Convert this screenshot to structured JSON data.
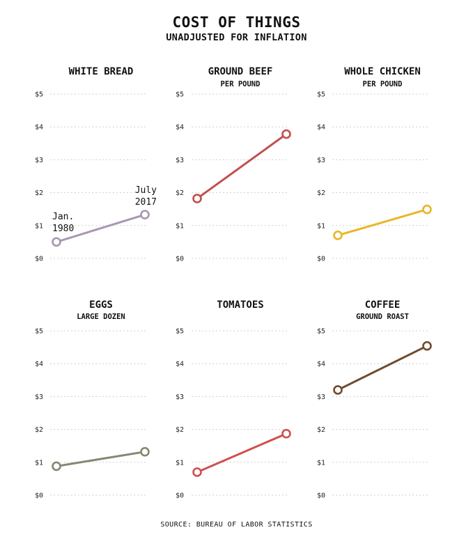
{
  "header": {
    "title": "COST OF THINGS",
    "subtitle": "UNADJUSTED FOR INFLATION",
    "source": "SOURCE: BUREAU OF LABOR STATISTICS"
  },
  "chart_data": [
    {
      "type": "line",
      "title": "WHITE BREAD",
      "subtitle": "",
      "x": [
        "Jan. 1980",
        "July 2017"
      ],
      "values": [
        0.5,
        1.33
      ],
      "color": "#a797b2",
      "ylim": [
        0,
        5
      ],
      "yticks": [
        "$0",
        "$1",
        "$2",
        "$3",
        "$4",
        "$5"
      ],
      "grid": true,
      "annotations": [
        [
          "Jan.",
          "1980"
        ],
        [
          "July",
          "2017"
        ]
      ]
    },
    {
      "type": "line",
      "title": "GROUND BEEF",
      "subtitle": "PER POUND",
      "x": [
        "Jan. 1980",
        "July 2017"
      ],
      "values": [
        1.82,
        3.78
      ],
      "color": "#c0504d",
      "ylim": [
        0,
        5
      ],
      "yticks": [
        "$0",
        "$1",
        "$2",
        "$3",
        "$4",
        "$5"
      ],
      "grid": true,
      "annotations": []
    },
    {
      "type": "line",
      "title": "WHOLE CHICKEN",
      "subtitle": "PER POUND",
      "x": [
        "Jan. 1980",
        "July 2017"
      ],
      "values": [
        0.7,
        1.49
      ],
      "color": "#e9b625",
      "ylim": [
        0,
        5
      ],
      "yticks": [
        "$0",
        "$1",
        "$2",
        "$3",
        "$4",
        "$5"
      ],
      "grid": true,
      "annotations": []
    },
    {
      "type": "line",
      "title": "EGGS",
      "subtitle": "LARGE DOZEN",
      "x": [
        "Jan. 1980",
        "July 2017"
      ],
      "values": [
        0.88,
        1.32
      ],
      "color": "#838872",
      "ylim": [
        0,
        5
      ],
      "yticks": [
        "$0",
        "$1",
        "$2",
        "$3",
        "$4",
        "$5"
      ],
      "grid": true,
      "annotations": []
    },
    {
      "type": "line",
      "title": "TOMATOES",
      "subtitle": "",
      "x": [
        "Jan. 1980",
        "July 2017"
      ],
      "values": [
        0.7,
        1.87
      ],
      "color": "#d14f4d",
      "ylim": [
        0,
        5
      ],
      "yticks": [
        "$0",
        "$1",
        "$2",
        "$3",
        "$4",
        "$5"
      ],
      "grid": true,
      "annotations": []
    },
    {
      "type": "line",
      "title": "COFFEE",
      "subtitle": "GROUND ROAST",
      "x": [
        "Jan. 1980",
        "July 2017"
      ],
      "values": [
        3.2,
        4.54
      ],
      "color": "#6e4c2e",
      "ylim": [
        0,
        5
      ],
      "yticks": [
        "$0",
        "$1",
        "$2",
        "$3",
        "$4",
        "$5"
      ],
      "grid": true,
      "annotations": []
    }
  ]
}
